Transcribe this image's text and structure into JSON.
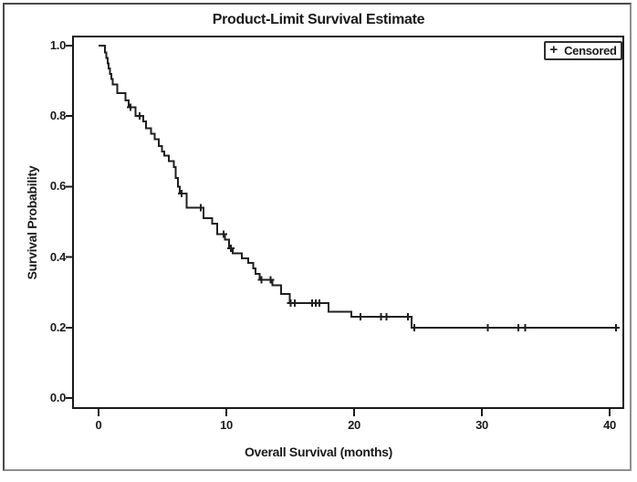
{
  "figure": {
    "title": "Product-Limit Survival Estimate"
  },
  "chart_data": {
    "type": "line",
    "subtype": "kaplan-meier-step-curve",
    "title": "Product-Limit Survival Estimate",
    "xlabel": "Overall Survival (months)",
    "ylabel": "Survival Probability",
    "xlim": [
      -2,
      41
    ],
    "ylim": [
      0.0,
      1.0
    ],
    "xticks": [
      0,
      10,
      20,
      30,
      40
    ],
    "xtick_labels": [
      "0",
      "10",
      "20",
      "30",
      "40"
    ],
    "ytick_values": [
      0.0,
      0.2,
      0.4,
      0.6,
      0.8,
      1.0
    ],
    "ytick_labels": [
      "0.0",
      "0.2",
      "0.4",
      "0.6",
      "0.8",
      "1.0"
    ],
    "grid": false,
    "line_color": "#1f1f1f",
    "frame_color": "#1a1a1a",
    "legend": [
      {
        "marker": "+",
        "label": "Censored"
      }
    ],
    "legend_position": "top-right-inside",
    "series": [
      {
        "name": "Overall Survival",
        "start": [
          0,
          1.0
        ],
        "end_time": 40.6,
        "steps": [
          [
            0.5,
            0.98
          ],
          [
            0.6,
            0.965
          ],
          [
            0.7,
            0.95
          ],
          [
            0.8,
            0.935
          ],
          [
            0.9,
            0.92
          ],
          [
            1.0,
            0.905
          ],
          [
            1.1,
            0.89
          ],
          [
            1.45,
            0.865
          ],
          [
            2.1,
            0.845
          ],
          [
            2.35,
            0.825
          ],
          [
            2.9,
            0.8
          ],
          [
            3.5,
            0.785
          ],
          [
            3.7,
            0.765
          ],
          [
            4.1,
            0.75
          ],
          [
            4.4,
            0.735
          ],
          [
            4.7,
            0.715
          ],
          [
            4.95,
            0.7
          ],
          [
            5.15,
            0.688
          ],
          [
            5.5,
            0.672
          ],
          [
            5.9,
            0.655
          ],
          [
            6.05,
            0.625
          ],
          [
            6.2,
            0.6
          ],
          [
            6.35,
            0.58
          ],
          [
            6.9,
            0.54
          ],
          [
            8.2,
            0.51
          ],
          [
            8.9,
            0.495
          ],
          [
            9.3,
            0.465
          ],
          [
            9.9,
            0.45
          ],
          [
            10.2,
            0.425
          ],
          [
            10.5,
            0.41
          ],
          [
            11.2,
            0.397
          ],
          [
            11.7,
            0.383
          ],
          [
            12.1,
            0.368
          ],
          [
            12.3,
            0.352
          ],
          [
            12.6,
            0.335
          ],
          [
            13.6,
            0.32
          ],
          [
            14.3,
            0.295
          ],
          [
            14.95,
            0.27
          ],
          [
            18.0,
            0.245
          ],
          [
            19.8,
            0.23
          ],
          [
            24.5,
            0.2
          ]
        ],
        "censored": [
          [
            2.5,
            0.825
          ],
          [
            3.2,
            0.8
          ],
          [
            6.5,
            0.58
          ],
          [
            8.0,
            0.54
          ],
          [
            9.8,
            0.465
          ],
          [
            10.35,
            0.425
          ],
          [
            12.75,
            0.335
          ],
          [
            13.45,
            0.335
          ],
          [
            15.05,
            0.27
          ],
          [
            15.35,
            0.27
          ],
          [
            16.7,
            0.27
          ],
          [
            17.0,
            0.27
          ],
          [
            17.3,
            0.27
          ],
          [
            20.5,
            0.23
          ],
          [
            22.1,
            0.23
          ],
          [
            22.55,
            0.23
          ],
          [
            24.2,
            0.23
          ],
          [
            24.7,
            0.2
          ],
          [
            30.45,
            0.2
          ],
          [
            32.85,
            0.2
          ],
          [
            33.4,
            0.2
          ],
          [
            40.5,
            0.2
          ]
        ]
      }
    ]
  }
}
